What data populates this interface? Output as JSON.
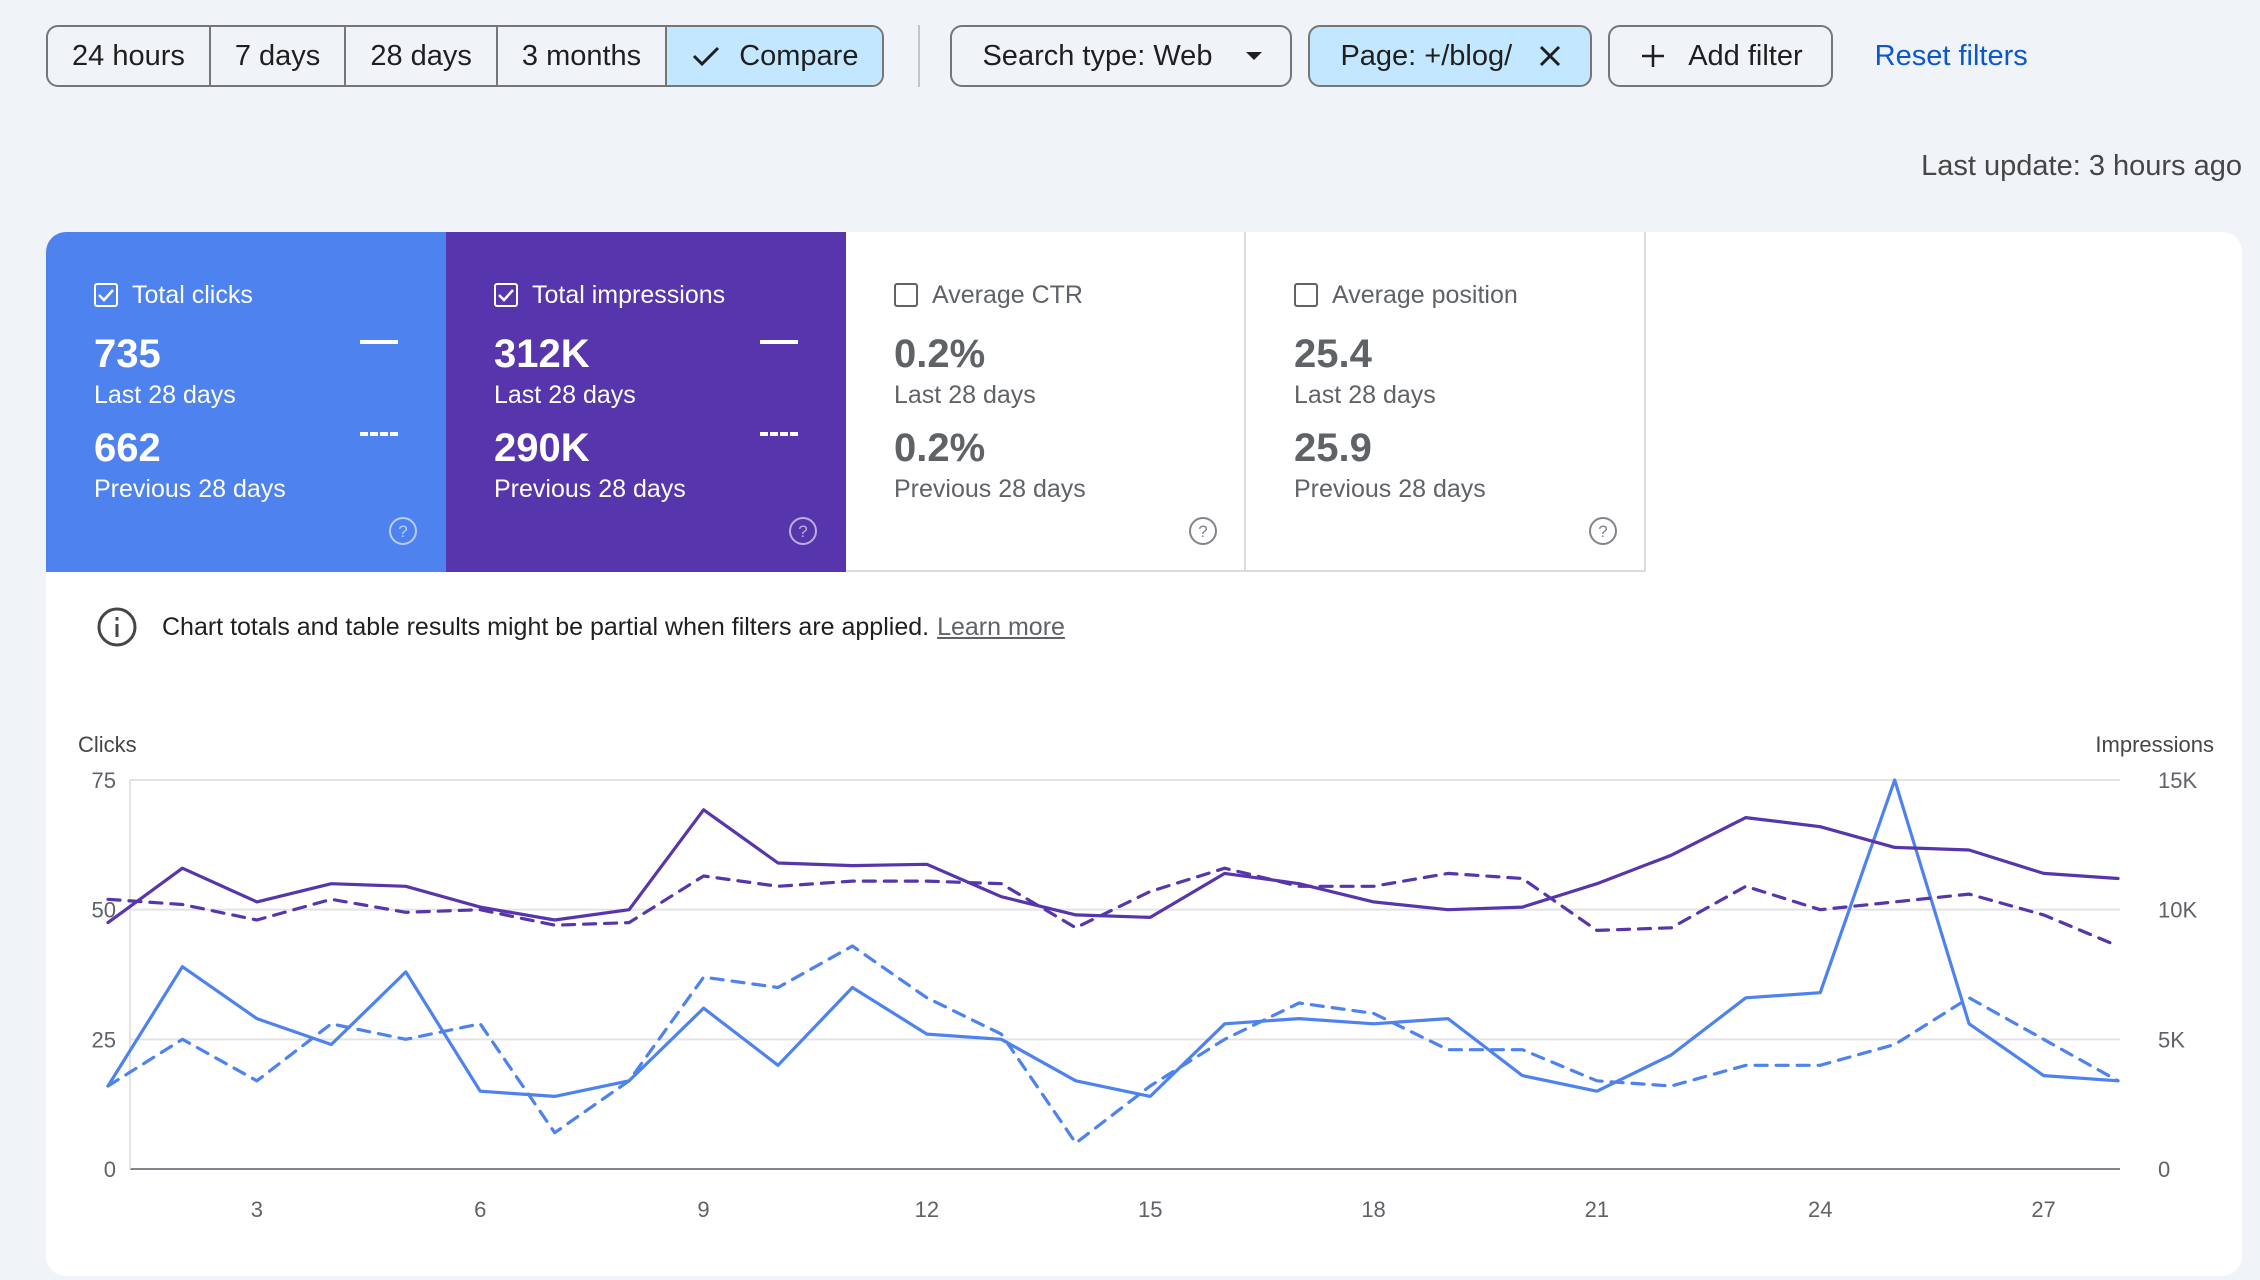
{
  "toolbar": {
    "ranges": [
      "24 hours",
      "7 days",
      "28 days",
      "3 months"
    ],
    "compare_label": "Compare",
    "search_type": "Search type: Web",
    "page_filter": "Page: +/blog/",
    "add_filter": "Add filter",
    "reset_filters": "Reset filters"
  },
  "last_update": "Last update: 3 hours ago",
  "metrics": [
    {
      "label": "Total clicks",
      "checked": true,
      "current": "735",
      "current_period": "Last 28 days",
      "previous": "662",
      "previous_period": "Previous 28 days",
      "color": "#4e82ee"
    },
    {
      "label": "Total impressions",
      "checked": true,
      "current": "312K",
      "current_period": "Last 28 days",
      "previous": "290K",
      "previous_period": "Previous 28 days",
      "color": "#5735ac"
    },
    {
      "label": "Average CTR",
      "checked": false,
      "current": "0.2%",
      "current_period": "Last 28 days",
      "previous": "0.2%",
      "previous_period": "Previous 28 days"
    },
    {
      "label": "Average position",
      "checked": false,
      "current": "25.4",
      "current_period": "Last 28 days",
      "previous": "25.9",
      "previous_period": "Previous 28 days"
    }
  ],
  "notice": {
    "text": "Chart totals and table results might be partial when filters are applied.",
    "link": "Learn more"
  },
  "chart_data": {
    "type": "line",
    "left_axis": {
      "title": "Clicks",
      "ticks": [
        0,
        25,
        50,
        75
      ],
      "labels": [
        "0",
        "25",
        "50",
        "75"
      ],
      "range": [
        0,
        75
      ]
    },
    "right_axis": {
      "title": "Impressions",
      "ticks": [
        0,
        5000,
        10000,
        15000
      ],
      "labels": [
        "0",
        "5K",
        "10K",
        "15K"
      ],
      "range": [
        0,
        15000
      ]
    },
    "x": [
      1,
      2,
      3,
      4,
      5,
      6,
      7,
      8,
      9,
      10,
      11,
      12,
      13,
      14,
      15,
      16,
      17,
      18,
      19,
      20,
      21,
      22,
      23,
      24,
      25,
      26,
      27,
      28
    ],
    "x_ticks": [
      3,
      6,
      9,
      12,
      15,
      18,
      21,
      24,
      27
    ],
    "grid": true,
    "series": [
      {
        "axis": "left",
        "style": "solid",
        "color": "#4e82ee",
        "values": [
          16,
          39,
          29,
          24,
          38,
          15,
          14,
          17,
          31,
          20,
          35,
          26,
          25,
          17,
          14,
          28,
          29,
          28,
          29,
          18,
          15,
          22,
          33,
          34,
          75,
          28,
          18,
          17
        ]
      },
      {
        "axis": "left",
        "style": "dashed",
        "color": "#4e82ee",
        "values": [
          16,
          25,
          17,
          28,
          25,
          28,
          7,
          17,
          37,
          35,
          43,
          33,
          26,
          5,
          16,
          25,
          32,
          30,
          23,
          23,
          17,
          16,
          20,
          20,
          24,
          33,
          25,
          17
        ]
      },
      {
        "axis": "right",
        "style": "solid",
        "color": "#5735ac",
        "values": [
          9500,
          11600,
          10300,
          11000,
          10900,
          10100,
          9600,
          10000,
          13850,
          11800,
          11700,
          11750,
          10500,
          9800,
          9700,
          11400,
          11000,
          10300,
          10000,
          10100,
          11000,
          12100,
          13550,
          13200,
          12400,
          12300,
          11400,
          11200
        ]
      },
      {
        "axis": "right",
        "style": "dashed",
        "color": "#5735ac",
        "values": [
          10400,
          10200,
          9600,
          10400,
          9900,
          10000,
          9400,
          9500,
          11300,
          10900,
          11100,
          11100,
          11000,
          9300,
          10700,
          11600,
          10900,
          10900,
          11400,
          11200,
          9200,
          9300,
          10900,
          10000,
          10300,
          10600,
          9800,
          8600
        ]
      }
    ]
  }
}
